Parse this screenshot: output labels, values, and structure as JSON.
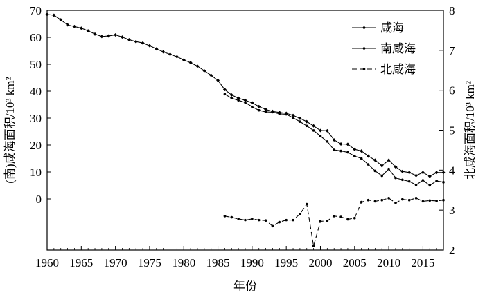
{
  "chart_data": {
    "type": "line",
    "xlabel": "年份",
    "ylabel_left": "(南)咸海面积/10³ km²",
    "ylabel_right": "北咸海面积/10³ km²",
    "xlim": [
      1960,
      2018
    ],
    "ylim_left": [
      0,
      70
    ],
    "ylim_right": [
      2,
      8
    ],
    "x_ticks": [
      1960,
      1965,
      1970,
      1975,
      1980,
      1985,
      1990,
      1995,
      2000,
      2005,
      2010,
      2015
    ],
    "y_ticks_left": [
      0,
      10,
      20,
      30,
      40,
      50,
      60,
      70
    ],
    "y_ticks_right": [
      2,
      3,
      4,
      5,
      6,
      7,
      8
    ],
    "legend_position": "top-right",
    "series": [
      {
        "name": "咸海",
        "axis": "left",
        "line_style": "solid",
        "marker": "diamond",
        "x": [
          1960,
          1961,
          1962,
          1963,
          1964,
          1965,
          1966,
          1967,
          1968,
          1969,
          1970,
          1971,
          1972,
          1973,
          1974,
          1975,
          1976,
          1977,
          1978,
          1979,
          1980,
          1981,
          1982,
          1983,
          1984,
          1985,
          1986,
          1987,
          1988,
          1989,
          1990,
          1991,
          1992,
          1993,
          1994,
          1995,
          1996,
          1997,
          1998,
          1999,
          2000,
          2001,
          2002,
          2003,
          2004,
          2005,
          2006,
          2007,
          2008,
          2009,
          2010,
          2011,
          2012,
          2013,
          2014,
          2015,
          2016,
          2017,
          2018
        ],
        "values": [
          68.5,
          68.2,
          66.5,
          64.6,
          64.0,
          63.4,
          62.4,
          61.2,
          60.3,
          60.5,
          60.9,
          60.1,
          59.1,
          58.4,
          57.9,
          56.9,
          55.7,
          54.6,
          53.7,
          52.8,
          51.6,
          50.6,
          49.3,
          47.6,
          45.9,
          44.0,
          40.6,
          38.6,
          37.4,
          36.6,
          35.7,
          34.3,
          33.2,
          32.5,
          32.1,
          31.8,
          31.0,
          29.9,
          28.7,
          27.1,
          25.4,
          25.3,
          21.9,
          20.4,
          20.3,
          18.4,
          17.8,
          15.9,
          14.4,
          12.3,
          14.4,
          11.9,
          10.2,
          9.8,
          8.7,
          9.8,
          8.4,
          9.8,
          9.8
        ]
      },
      {
        "name": "南咸海",
        "axis": "left",
        "line_style": "solid",
        "marker": "dot",
        "x": [
          1986,
          1987,
          1988,
          1989,
          1990,
          1991,
          1992,
          1993,
          1994,
          1995,
          1996,
          1997,
          1998,
          1999,
          2000,
          2001,
          2002,
          2003,
          2004,
          2005,
          2006,
          2007,
          2008,
          2009,
          2010,
          2011,
          2012,
          2013,
          2014,
          2015,
          2016,
          2017,
          2018
        ],
        "values": [
          38.9,
          37.4,
          36.6,
          35.8,
          34.2,
          32.9,
          32.3,
          32.2,
          31.6,
          31.4,
          30.1,
          28.7,
          27.1,
          25.4,
          23.3,
          21.3,
          18.2,
          17.8,
          17.3,
          15.9,
          15.0,
          12.8,
          10.4,
          8.6,
          11.1,
          7.8,
          7.1,
          6.5,
          5.2,
          6.9,
          5.0,
          6.7,
          6.2
        ]
      },
      {
        "name": "北咸海",
        "axis": "right",
        "line_style": "dashed",
        "marker": "dot",
        "x": [
          1986,
          1987,
          1988,
          1989,
          1990,
          1991,
          1992,
          1993,
          1994,
          1995,
          1996,
          1997,
          1998,
          1999,
          2000,
          2001,
          2002,
          2003,
          2004,
          2005,
          2006,
          2007,
          2008,
          2009,
          2010,
          2011,
          2012,
          2013,
          2014,
          2015,
          2016,
          2017,
          2018
        ],
        "values": [
          2.85,
          2.82,
          2.78,
          2.75,
          2.78,
          2.75,
          2.74,
          2.6,
          2.7,
          2.75,
          2.75,
          2.9,
          3.15,
          2.1,
          2.72,
          2.73,
          2.85,
          2.83,
          2.77,
          2.8,
          3.2,
          3.25,
          3.22,
          3.25,
          3.3,
          3.18,
          3.27,
          3.25,
          3.3,
          3.22,
          3.24,
          3.23,
          3.25
        ]
      }
    ]
  }
}
